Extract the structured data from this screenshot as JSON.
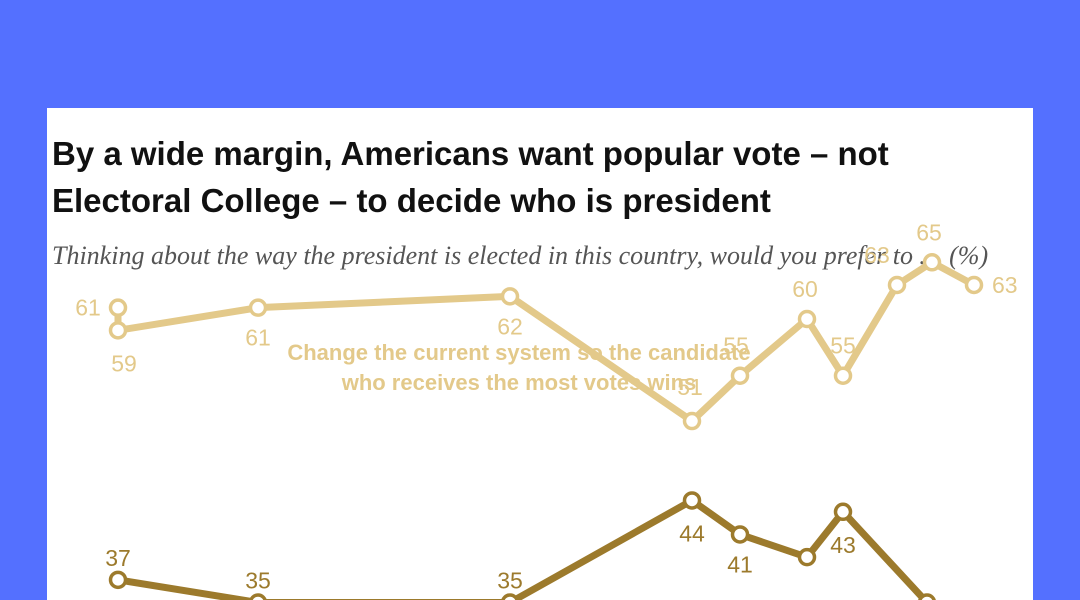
{
  "title": "By a wide margin, Americans want popular vote – not Electoral College – to decide who is president",
  "subtitle": "Thinking about the way the president is elected in this country, would you prefer to … (%)",
  "chart_data": {
    "type": "line",
    "title": "By a wide margin, Americans want popular vote – not Electoral College – to decide who is president",
    "subtitle": "Thinking about the way the president is elected in this country, would you prefer to … (%)",
    "xlabel": "",
    "ylabel": "",
    "grid": false,
    "legend": "inline",
    "colors": {
      "change": "#e3c98a",
      "keep": "#9c7a2c"
    },
    "series": [
      {
        "id": "change",
        "name": "Change the current system so the candidate who receives the most votes wins",
        "name_lines": [
          "Change the current system so the candidate",
          "who receives the most votes wins"
        ],
        "points": [
          {
            "value": 61,
            "label": "61"
          },
          {
            "value": 59,
            "label": "59"
          },
          {
            "value": 61,
            "label": "61"
          },
          {
            "value": 62,
            "label": "62"
          },
          {
            "value": 51,
            "label": "51"
          },
          {
            "value": 55,
            "label": "55"
          },
          {
            "value": 60,
            "label": "60"
          },
          {
            "value": 55,
            "label": "55"
          },
          {
            "value": 63,
            "label": "63"
          },
          {
            "value": 65,
            "label": "65"
          },
          {
            "value": 63,
            "label": "63"
          }
        ]
      },
      {
        "id": "keep",
        "name": "",
        "points": [
          {
            "value": 37,
            "label": "37"
          },
          {
            "value": 35,
            "label": "35"
          },
          {
            "value": 35,
            "label": "35"
          },
          {
            "value": 44,
            "label": "44"
          },
          {
            "value": 41,
            "label": "41"
          },
          {
            "value": 39,
            "label": ""
          },
          {
            "value": 43,
            "label": "43"
          },
          {
            "value": 35,
            "label": ""
          }
        ]
      }
    ]
  }
}
